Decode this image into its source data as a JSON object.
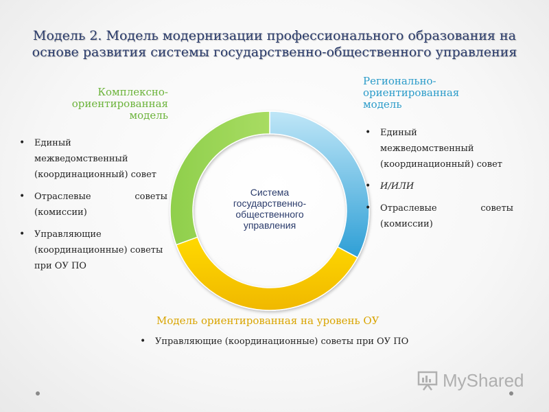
{
  "title": "Модель 2. Модель модернизации профессионального образования на основе развития системы государственно-общественного управления",
  "center_label": "Система государственно-общественного управления",
  "left": {
    "heading": "Комплексно-ориентированная модель",
    "items": [
      "Единый межведомственный (координационный) совет",
      "Отраслевые советы (комиссии)",
      "Управляющие (координационные) советы при ОУ ПО"
    ]
  },
  "right": {
    "heading": "Регионально-ориентированная модель",
    "items": [
      "Единый межведомственный (координационный) совет",
      "И/ИЛИ",
      "Отраслевые советы (комиссии)"
    ]
  },
  "bottom": {
    "heading": "Модель ориентированная на уровень ОУ",
    "items": [
      "Управляющие (координационные) советы при ОУ ПО"
    ]
  },
  "watermark": {
    "text": "MyShared",
    "icon": "presentation-board-icon"
  },
  "colors": {
    "title": "#2a3b6b",
    "green": "#8fcf4c",
    "blue": "#4fb0e0",
    "yellow": "#f2c400"
  }
}
